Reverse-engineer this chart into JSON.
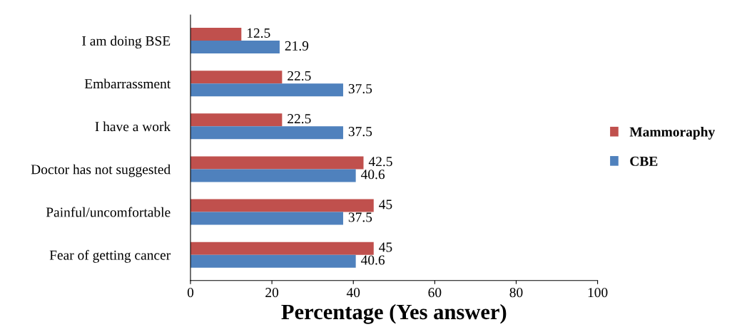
{
  "chart_data": {
    "type": "bar",
    "orientation": "horizontal",
    "xlabel": "Percentage (Yes answer)",
    "categories": [
      "I am doing BSE",
      "Embarrassment",
      "I have a work",
      "Doctor has not suggested",
      "Painful/uncomfortable",
      "Fear of getting cancer"
    ],
    "series": [
      {
        "name": "Mammoraphy",
        "color": "#c0504d",
        "values": [
          12.5,
          22.5,
          22.5,
          42.5,
          45,
          45
        ]
      },
      {
        "name": "CBE",
        "color": "#4f81bd",
        "values": [
          21.9,
          37.5,
          37.5,
          40.6,
          37.5,
          40.6
        ]
      }
    ],
    "xlim": [
      0,
      100
    ],
    "xticks": [
      0,
      20,
      40,
      60,
      80,
      100
    ],
    "data_labels": true,
    "grid": false,
    "legend": "right"
  }
}
